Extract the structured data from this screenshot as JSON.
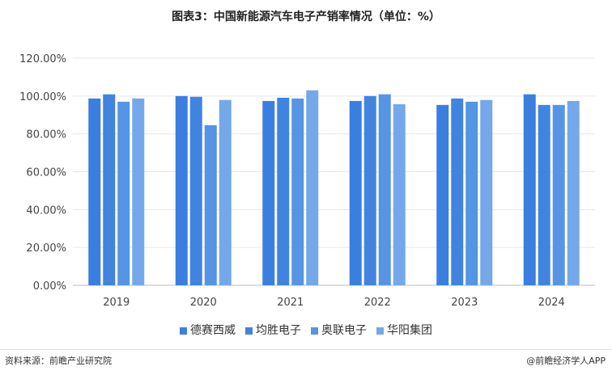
{
  "chart_data": {
    "type": "bar",
    "title": "图表3：中国新能源汽车电子产销率情况（单位：%）",
    "categories": [
      "2019",
      "2020",
      "2021",
      "2022",
      "2023",
      "2024"
    ],
    "series": [
      {
        "name": "德赛西威",
        "values": [
          98.7,
          100.0,
          97.4,
          97.4,
          95.3,
          100.9
        ],
        "color": "#3a7fe0"
      },
      {
        "name": "均胜电子",
        "values": [
          100.9,
          99.6,
          99.1,
          100.0,
          98.7,
          95.3
        ],
        "color": "#4084e0"
      },
      {
        "name": "奥联电子",
        "values": [
          97.0,
          84.6,
          98.7,
          100.9,
          97.0,
          95.3
        ],
        "color": "#5694e4"
      },
      {
        "name": "华阳集团",
        "values": [
          98.7,
          97.9,
          103.0,
          95.7,
          97.9,
          97.4
        ],
        "color": "#74a8ea"
      }
    ],
    "ylim": [
      0,
      120
    ],
    "yticks": [
      "0.00%",
      "20.00%",
      "40.00%",
      "60.00%",
      "80.00%",
      "100.00%",
      "120.00%"
    ],
    "grid": true,
    "legend": "bottom"
  },
  "footer": {
    "source": "资料来源：前瞻产业研究院",
    "credit": "@前瞻经济学人APP"
  }
}
